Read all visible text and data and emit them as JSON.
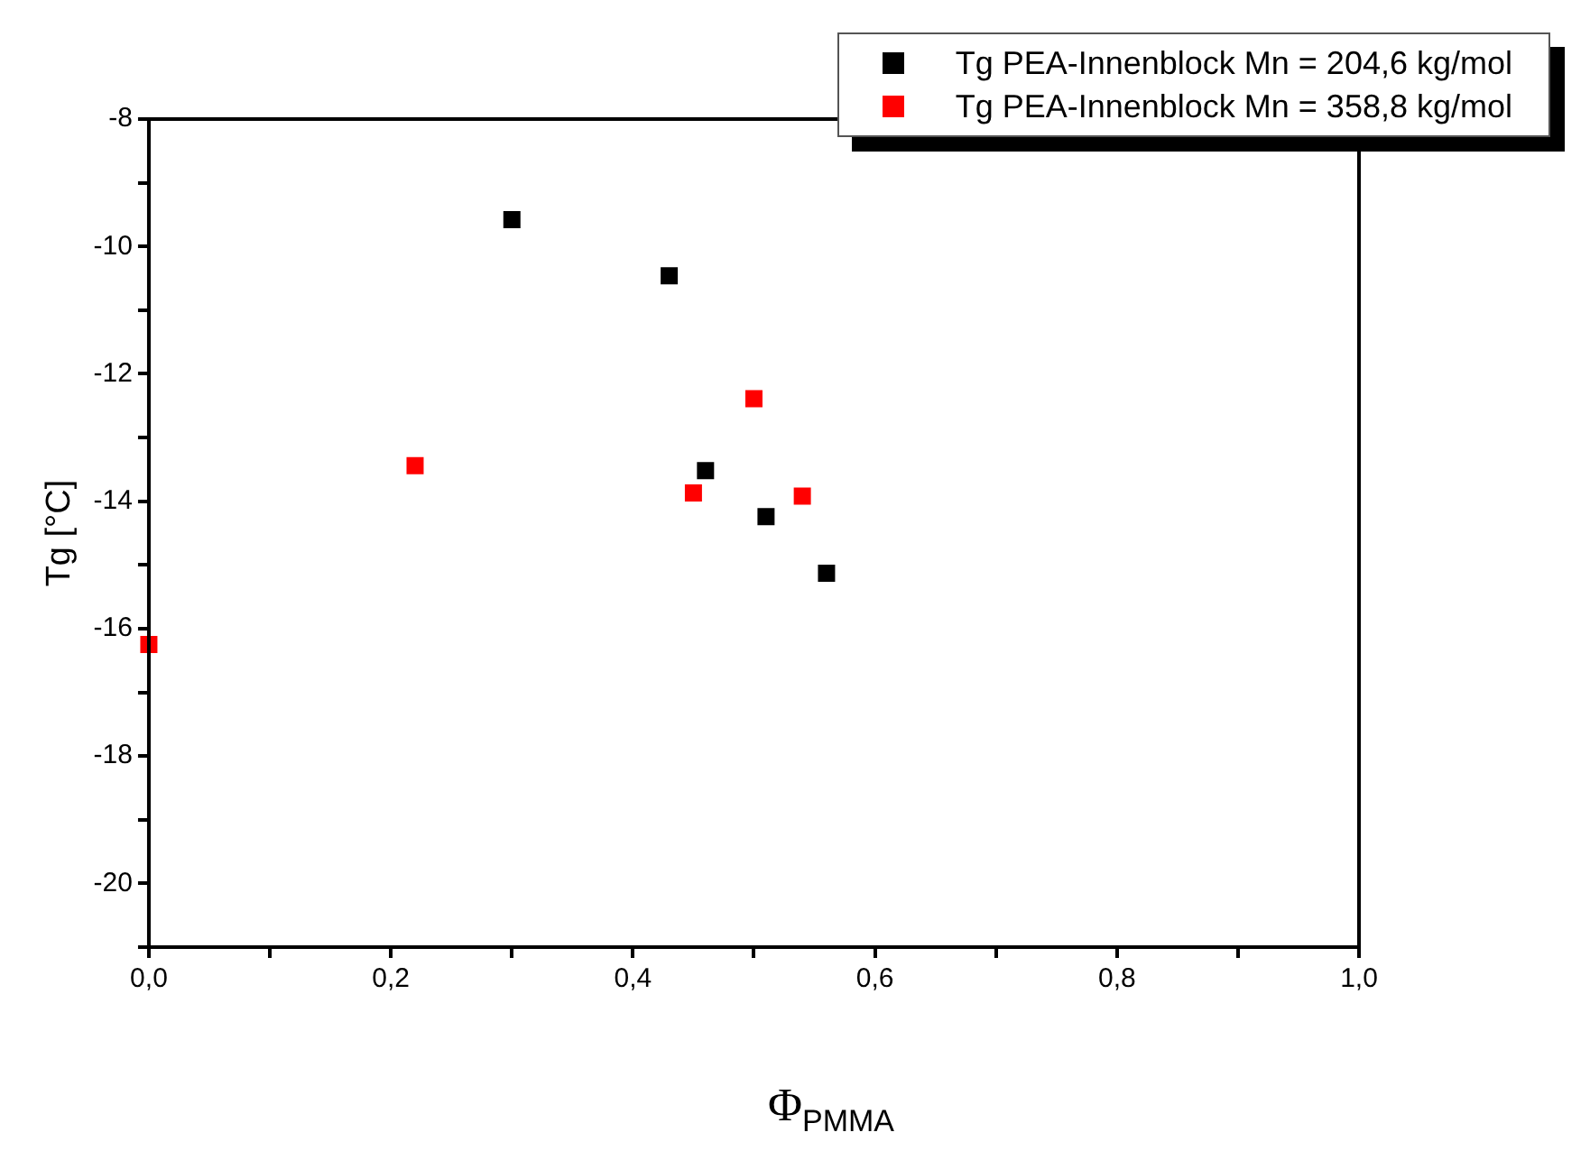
{
  "chart_data": {
    "type": "scatter",
    "xlabel": "Φ$_{PMMA}$",
    "ylabel": "Tg [°C]",
    "marker": "square",
    "grid": false,
    "legend": "top right",
    "xlim": [
      0,
      1
    ],
    "ylim": [
      -21,
      -8
    ],
    "xticks": [
      {
        "value": 0,
        "label": "0,0"
      },
      {
        "value": 0.1,
        "label": null
      },
      {
        "value": 0.2,
        "label": "0,2"
      },
      {
        "value": 0.3,
        "label": null
      },
      {
        "value": 0.4,
        "label": "0,4"
      },
      {
        "value": 0.5,
        "label": null
      },
      {
        "value": 0.6,
        "label": "0,6"
      },
      {
        "value": 0.7,
        "label": null
      },
      {
        "value": 0.8,
        "label": "0,8"
      },
      {
        "value": 0.9,
        "label": null
      },
      {
        "value": 1,
        "label": "1,0"
      }
    ],
    "yticks": [
      {
        "value": -21,
        "label": null
      },
      -20,
      {
        "value": -19,
        "label": null
      },
      -18,
      {
        "value": -17,
        "label": null
      },
      -16,
      {
        "value": -15,
        "label": null
      },
      -14,
      {
        "value": -13,
        "label": null
      },
      -12,
      {
        "value": -11,
        "label": null
      },
      -10,
      {
        "value": -9,
        "label": null
      },
      -8
    ],
    "series": [
      {
        "name": "Tg PEA-Innenblock Mn = 204,6 kg/mol",
        "color": "#000000",
        "x": [
          0.3,
          0.43,
          0.46,
          0.51,
          0.56
        ],
        "values": [
          -9.58,
          -10.46,
          -13.52,
          -14.24,
          -15.13
        ]
      },
      {
        "name": "Tg PEA-Innenblock Mn = 358,8 kg/mol",
        "color": "#ff0000",
        "x": [
          0.0,
          0.22,
          0.45,
          0.5,
          0.54
        ],
        "values": [
          -16.25,
          -13.44,
          -13.87,
          -12.39,
          -13.92
        ]
      }
    ]
  }
}
